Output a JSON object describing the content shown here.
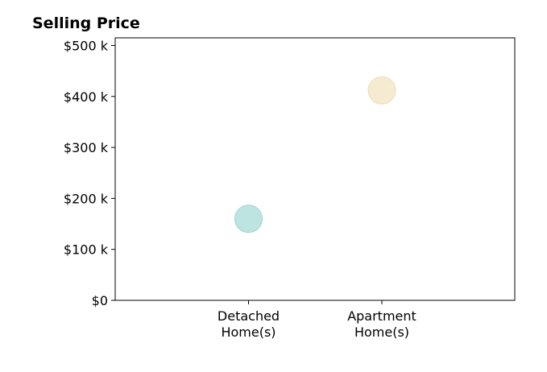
{
  "chart_data": {
    "type": "scatter",
    "title": "Selling Price",
    "xlabel": "",
    "ylabel": "",
    "categories": [
      [
        "Detached",
        "Home(s)"
      ],
      [
        "Apartment",
        "Home(s)"
      ]
    ],
    "values": [
      160000,
      412000
    ],
    "colors": [
      "#b2dfdb",
      "#f5e6c8"
    ],
    "stroke_colors": [
      "#9fd3ce",
      "#f0dcb6"
    ],
    "ylim": [
      0,
      515000
    ],
    "y_ticks": [
      0,
      100000,
      200000,
      300000,
      400000,
      500000
    ],
    "y_tick_labels": [
      "$0",
      "$100 k",
      "$200 k",
      "$300 k",
      "$400 k",
      "$500 k"
    ],
    "grid": false,
    "legend": "none"
  }
}
